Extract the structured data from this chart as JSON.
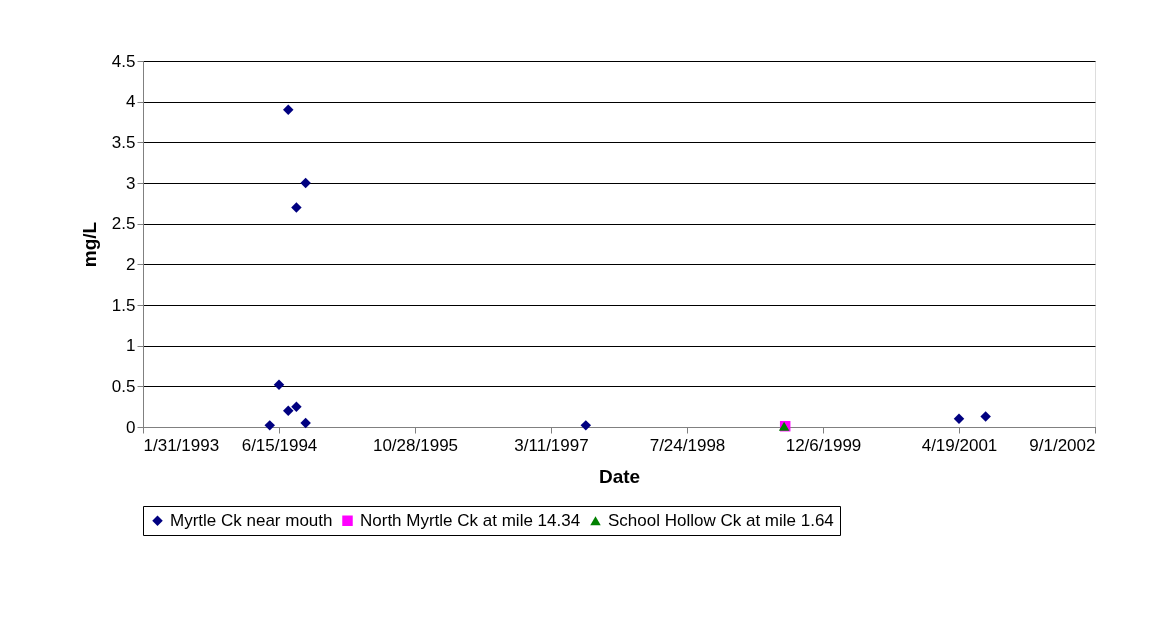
{
  "chart_data": {
    "type": "scatter",
    "xlabel": "Date",
    "ylabel": "mg/L",
    "series": [
      {
        "name": "Myrtle Ck near mouth",
        "color": "#000080",
        "marker": "diamond",
        "x": [
          "1994-05-12",
          "1994-06-15",
          "1994-07-19",
          "1994-07-19",
          "1994-08-18",
          "1994-08-18",
          "1994-09-21",
          "1994-09-21",
          "1997-07-17",
          "2001-04-19",
          "2001-07-26"
        ],
        "values": [
          0.02,
          0.52,
          0.2,
          3.9,
          2.7,
          0.25,
          3.0,
          0.05,
          0.02,
          0.1,
          0.13
        ]
      },
      {
        "name": "North Myrtle Ck at mile 14.34",
        "color": "#ff00ff",
        "marker": "square",
        "x": [
          "1999-07-20"
        ],
        "values": [
          0.01
        ]
      },
      {
        "name": "School Hollow Ck at mile 1.64",
        "color": "#008000",
        "marker": "triangle",
        "x": [
          "1999-07-16"
        ],
        "values": [
          0.01
        ]
      }
    ],
    "xlim": [
      "1993-01-31",
      "2002-09-01"
    ],
    "xticks": [
      {
        "value": "1993-01-31",
        "label": "1/31/1993"
      },
      {
        "value": "1994-06-15",
        "label": "6/15/1994"
      },
      {
        "value": "1995-10-28",
        "label": "10/28/1995"
      },
      {
        "value": "1997-03-11",
        "label": "3/11/1997"
      },
      {
        "value": "1998-07-24",
        "label": "7/24/1998"
      },
      {
        "value": "1999-12-06",
        "label": "12/6/1999"
      },
      {
        "value": "2001-04-19",
        "label": "4/19/2001"
      },
      {
        "value": "2002-09-01",
        "label": "9/1/2002"
      }
    ],
    "ylim": [
      0,
      4.5
    ],
    "yticks": [
      0,
      0.5,
      1,
      1.5,
      2,
      2.5,
      3,
      3.5,
      4,
      4.5
    ],
    "grid": "y",
    "legend": "bottom"
  }
}
